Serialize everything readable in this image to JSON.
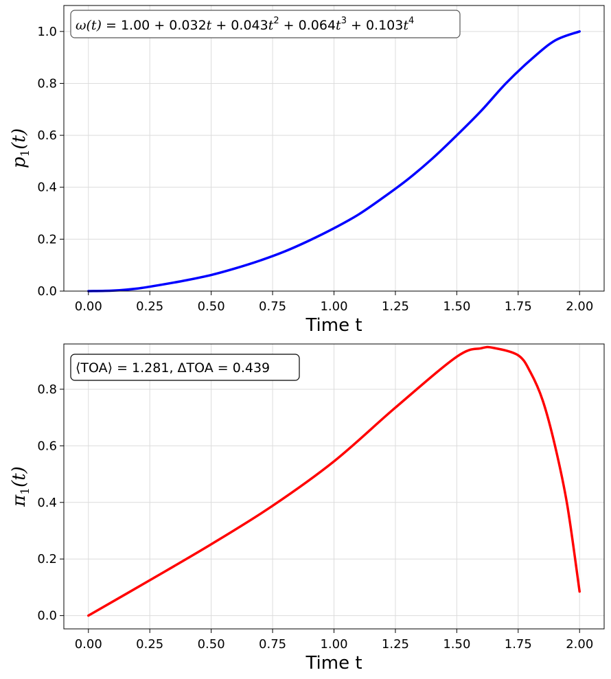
{
  "chart_data": [
    {
      "type": "line",
      "annotation": {
        "lhs": "ω(t)",
        "parts": [
          "1.00 + 0.032",
          "t",
          " + 0.043",
          "t",
          "2",
          " + 0.064",
          "t",
          "3",
          " + 0.103",
          "t",
          "4"
        ]
      },
      "xlabel": "Time t",
      "ylabel": {
        "sym": "p",
        "sub": "1",
        "arg": "(t)"
      },
      "xlim": [
        -0.1,
        2.1
      ],
      "ylim": [
        0,
        1.1
      ],
      "xticks": [
        "0.00",
        "0.25",
        "0.50",
        "0.75",
        "1.00",
        "1.25",
        "1.50",
        "1.75",
        "2.00"
      ],
      "yticks": [
        "0.0",
        "0.2",
        "0.4",
        "0.6",
        "0.8",
        "1.0"
      ],
      "grid": true,
      "series": [
        {
          "color": "#0000ff",
          "x": [
            0.0,
            0.1,
            0.2,
            0.3,
            0.4,
            0.5,
            0.6,
            0.7,
            0.8,
            0.9,
            1.0,
            1.1,
            1.2,
            1.3,
            1.4,
            1.5,
            1.6,
            1.7,
            1.8,
            1.9,
            2.0
          ],
          "y": [
            0.0,
            0.002,
            0.01,
            0.025,
            0.042,
            0.062,
            0.088,
            0.118,
            0.153,
            0.195,
            0.242,
            0.295,
            0.36,
            0.43,
            0.51,
            0.6,
            0.695,
            0.8,
            0.89,
            0.965,
            1.0
          ]
        }
      ]
    },
    {
      "type": "line",
      "annotation": {
        "text": "⟨TOA⟩ = 1.281, ΔTOA = 0.439"
      },
      "xlabel": "Time t",
      "ylabel": {
        "sym": "π",
        "sub": "1",
        "arg": "(t)"
      },
      "xlim": [
        -0.1,
        2.1
      ],
      "ylim": [
        -0.047,
        0.96
      ],
      "xticks": [
        "0.00",
        "0.25",
        "0.50",
        "0.75",
        "1.00",
        "1.25",
        "1.50",
        "1.75",
        "2.00"
      ],
      "yticks": [
        "0.0",
        "0.2",
        "0.4",
        "0.6",
        "0.8"
      ],
      "grid": true,
      "series": [
        {
          "color": "#ff0000",
          "x": [
            0.0,
            0.25,
            0.5,
            0.75,
            1.0,
            1.25,
            1.5,
            1.6,
            1.65,
            1.75,
            1.8,
            1.85,
            1.9,
            1.95,
            2.0
          ],
          "y": [
            0.0,
            0.125,
            0.252,
            0.388,
            0.545,
            0.735,
            0.915,
            0.945,
            0.946,
            0.92,
            0.86,
            0.76,
            0.6,
            0.39,
            0.085
          ]
        }
      ]
    }
  ]
}
